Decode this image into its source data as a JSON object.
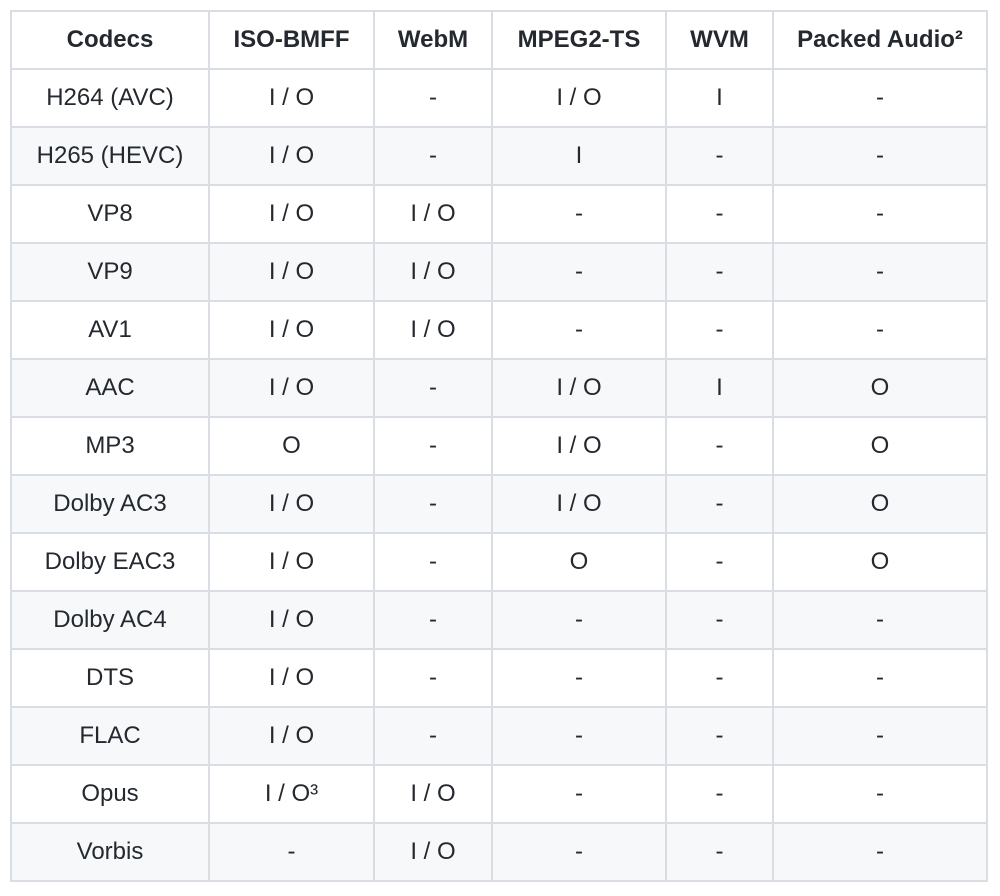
{
  "table": {
    "headers": [
      "Codecs",
      "ISO-BMFF",
      "WebM",
      "MPEG2-TS",
      "WVM",
      "Packed Audio²"
    ],
    "rows": [
      [
        "H264 (AVC)",
        "I / O",
        "-",
        "I / O",
        "I",
        "-"
      ],
      [
        "H265 (HEVC)",
        "I / O",
        "-",
        "I",
        "-",
        "-"
      ],
      [
        "VP8",
        "I / O",
        "I / O",
        "-",
        "-",
        "-"
      ],
      [
        "VP9",
        "I / O",
        "I / O",
        "-",
        "-",
        "-"
      ],
      [
        "AV1",
        "I / O",
        "I / O",
        "-",
        "-",
        "-"
      ],
      [
        "AAC",
        "I / O",
        "-",
        "I / O",
        "I",
        "O"
      ],
      [
        "MP3",
        "O",
        "-",
        "I / O",
        "-",
        "O"
      ],
      [
        "Dolby AC3",
        "I / O",
        "-",
        "I / O",
        "-",
        "O"
      ],
      [
        "Dolby EAC3",
        "I / O",
        "-",
        "O",
        "-",
        "O"
      ],
      [
        "Dolby AC4",
        "I / O",
        "-",
        "-",
        "-",
        "-"
      ],
      [
        "DTS",
        "I / O",
        "-",
        "-",
        "-",
        "-"
      ],
      [
        "FLAC",
        "I / O",
        "-",
        "-",
        "-",
        "-"
      ],
      [
        "Opus",
        "I / O³",
        "I / O",
        "-",
        "-",
        "-"
      ],
      [
        "Vorbis",
        "-",
        "I / O",
        "-",
        "-",
        "-"
      ]
    ]
  }
}
